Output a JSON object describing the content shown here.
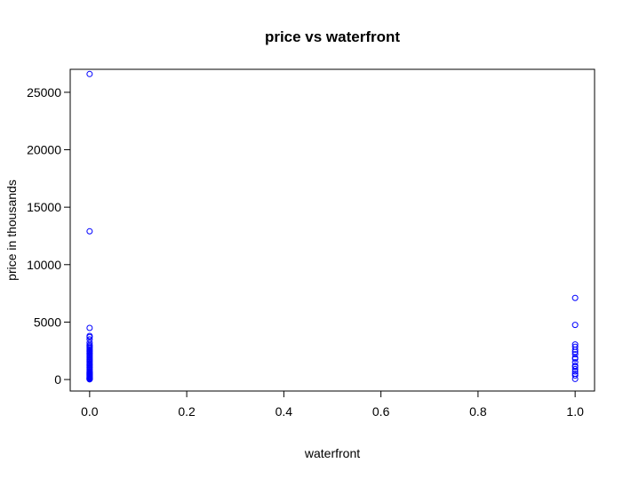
{
  "chart_data": {
    "type": "scatter",
    "title": "price vs waterfront",
    "xlabel": "waterfront",
    "ylabel": "price in thousands",
    "xlim": [
      -0.04,
      1.04
    ],
    "ylim": [
      -1000,
      27000
    ],
    "x_ticks": [
      0.0,
      0.2,
      0.4,
      0.6,
      0.8,
      1.0
    ],
    "x_tick_labels": [
      "0.0",
      "0.2",
      "0.4",
      "0.6",
      "0.8",
      "1.0"
    ],
    "y_ticks": [
      0,
      5000,
      10000,
      15000,
      20000,
      25000
    ],
    "y_tick_labels": [
      "0",
      "5000",
      "10000",
      "15000",
      "20000",
      "25000"
    ],
    "grid": false,
    "point_color": "#0000ff",
    "series": [
      {
        "x": [
          0,
          0,
          0,
          0,
          0,
          0,
          0,
          0,
          0,
          0,
          0,
          0,
          0,
          0,
          0,
          0,
          0,
          0,
          0,
          0,
          0,
          0,
          0,
          0,
          0,
          0,
          0,
          0,
          0,
          0,
          0,
          0,
          0,
          0,
          0,
          0,
          0,
          0,
          0,
          0,
          0,
          0,
          0,
          0,
          0,
          0,
          0,
          0,
          1,
          1,
          1,
          1,
          1,
          1,
          1,
          1,
          1,
          1,
          1,
          1,
          1,
          1,
          1,
          1,
          1
        ],
        "y": [
          26590,
          12900,
          4490,
          3800,
          3700,
          3500,
          3200,
          3000,
          2900,
          2800,
          2700,
          2600,
          2500,
          2400,
          2300,
          2200,
          2100,
          2000,
          1900,
          1800,
          1700,
          1600,
          1500,
          1400,
          1300,
          1200,
          1100,
          1000,
          900,
          800,
          700,
          650,
          600,
          550,
          500,
          450,
          400,
          350,
          300,
          250,
          200,
          150,
          100,
          80,
          60,
          50,
          30,
          20,
          7100,
          4750,
          3050,
          2850,
          2600,
          2400,
          2200,
          1900,
          1800,
          1500,
          1200,
          1100,
          900,
          700,
          500,
          350,
          50
        ]
      }
    ]
  }
}
